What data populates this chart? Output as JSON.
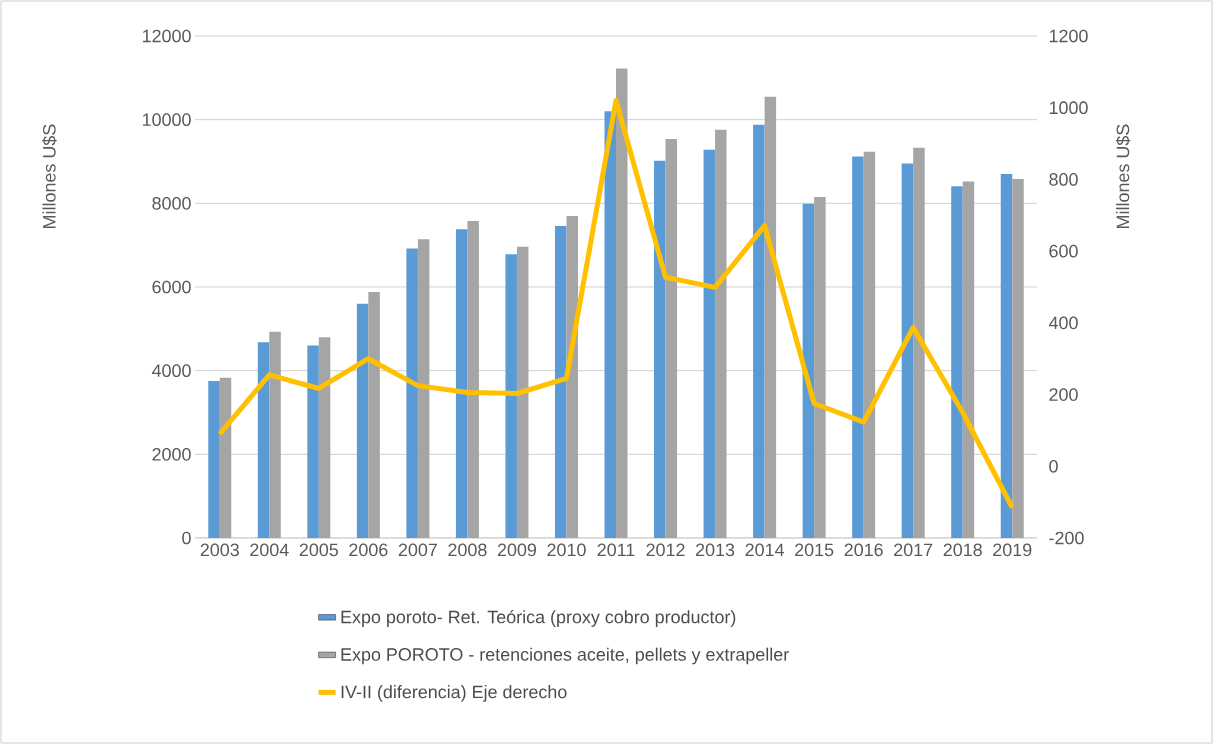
{
  "chart_data": {
    "type": "bar",
    "ylabel": "Millones U$S",
    "y2label": "Millones U$S",
    "categories": [
      "2003",
      "2004",
      "2005",
      "2006",
      "2007",
      "2008",
      "2009",
      "2010",
      "2011",
      "2012",
      "2013",
      "2014",
      "2015",
      "2016",
      "2017",
      "2018",
      "2019"
    ],
    "series": [
      {
        "name": "Expo poroto- Ret. Teórica (proxy cobro productor)",
        "color": "#5b9bd5",
        "values": [
          3750,
          4680,
          4600,
          5600,
          6920,
          7380,
          6780,
          7460,
          10200,
          9020,
          9280,
          9880,
          7990,
          9120,
          8950,
          8410,
          8700
        ]
      },
      {
        "name": "Expo POROTO - retenciones aceite, pellets y extrapeller",
        "color": "#a5a5a5",
        "values": [
          3830,
          4930,
          4800,
          5880,
          7140,
          7580,
          6960,
          7700,
          11220,
          9540,
          9760,
          10550,
          8150,
          9230,
          9330,
          8520,
          8580
        ]
      },
      {
        "name": "IV-II (diferencia) Eje derecho",
        "type": "line",
        "axis": "y2",
        "color": "#ffc000",
        "values": [
          90,
          255,
          217,
          300,
          225,
          206,
          203,
          245,
          1020,
          527,
          499,
          671,
          175,
          123,
          387,
          150,
          -115
        ]
      }
    ],
    "ylim": [
      0,
      12000
    ],
    "yticks": [
      0,
      2000,
      4000,
      6000,
      8000,
      10000,
      12000
    ],
    "y2lim": [
      -200,
      1200
    ],
    "y2ticks": [
      -200,
      0,
      200,
      400,
      600,
      800,
      1000,
      1200
    ],
    "grid": "y",
    "legend": "bottom"
  }
}
